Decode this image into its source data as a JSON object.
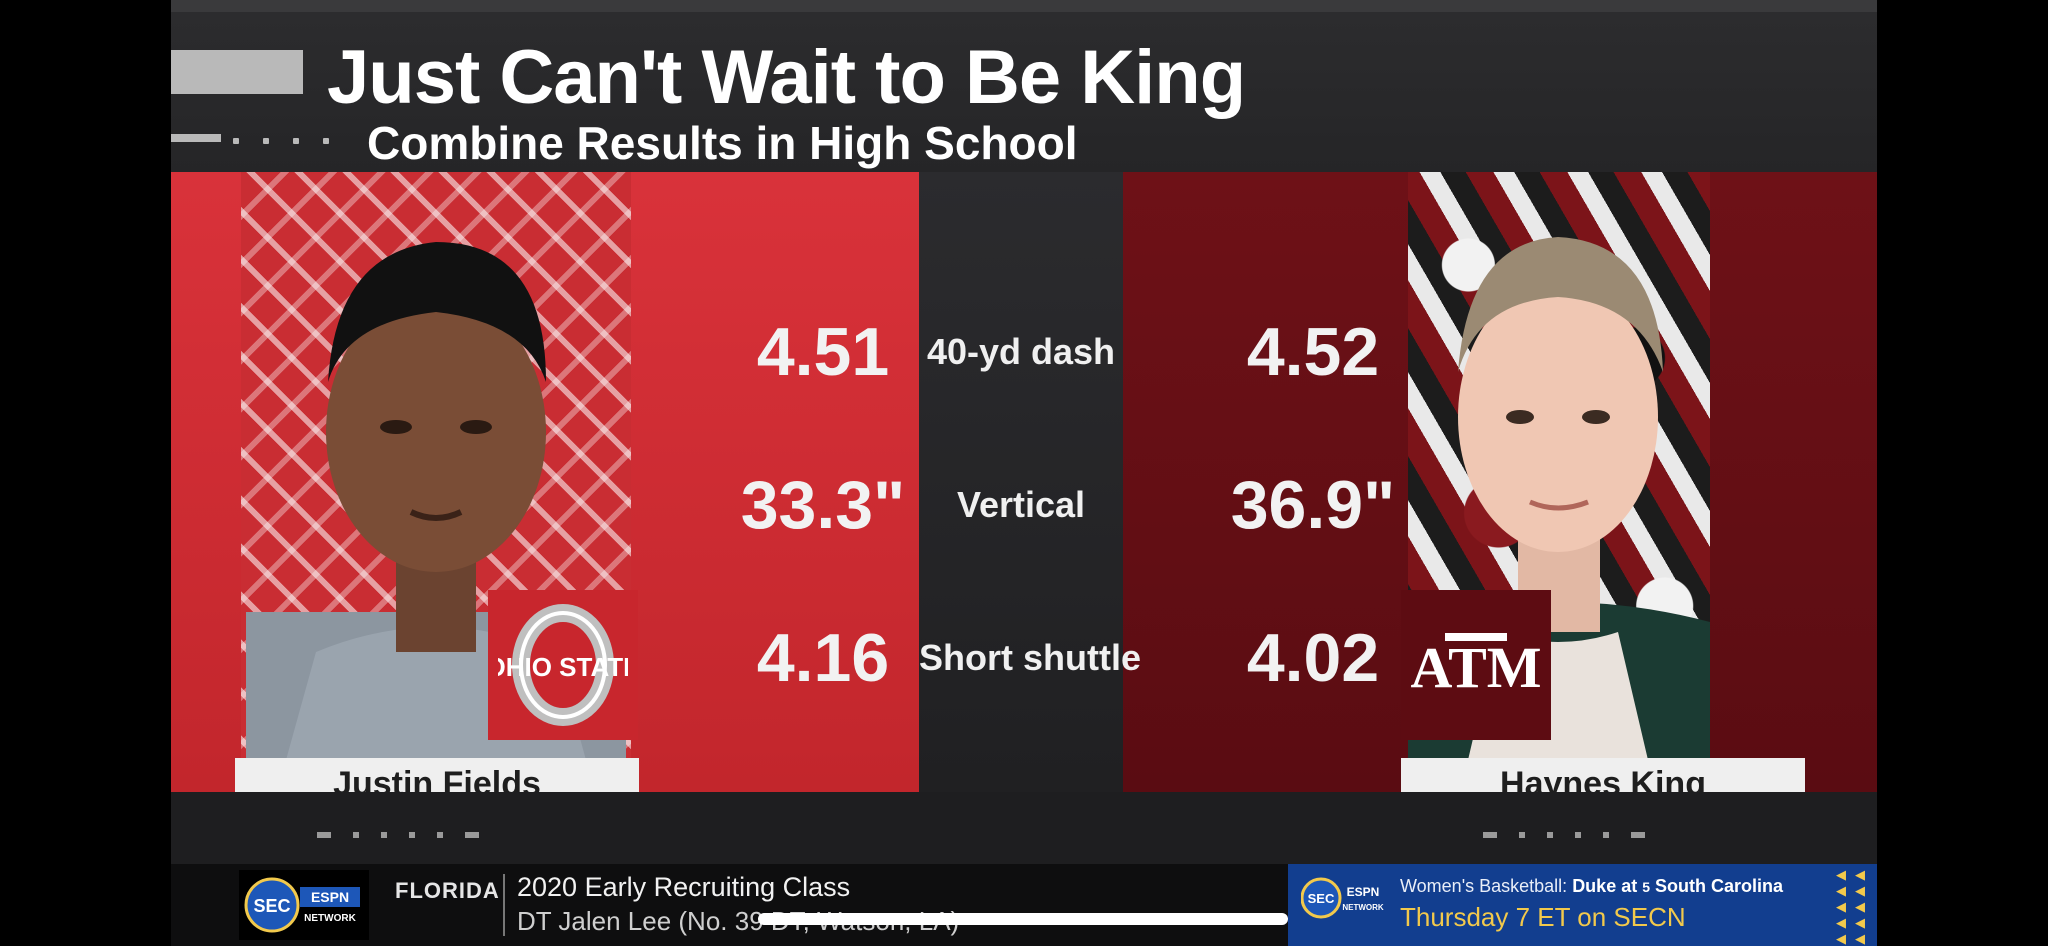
{
  "header": {
    "title": "Just Can't Wait to Be King",
    "subtitle": "Combine Results in High School"
  },
  "players": {
    "left": {
      "name": "Justin Fields",
      "school_logo": "OHIO STATE",
      "logo_icon": "ohio-state-logo-icon"
    },
    "right": {
      "name": "Haynes King",
      "school_logo": "ATM",
      "logo_icon": "texas-am-logo-icon"
    }
  },
  "stats": [
    {
      "label": "40-yd dash",
      "left": "4.51",
      "right": "4.52"
    },
    {
      "label": "Vertical",
      "left": "33.3\"",
      "right": "36.9\""
    },
    {
      "label": "Short shuttle",
      "left": "4.16",
      "right": "4.02"
    }
  ],
  "ticker": {
    "network_logo": "SEC ESPN NETWORK",
    "school": "FLORIDA",
    "headline": "2020 Early Recruiting Class",
    "subline": "DT Jalen Lee (No. 39 DT, Watson, LA)"
  },
  "promo": {
    "network_logo": "SEC ESPN NETWORK",
    "prefix": "Women's Basketball: ",
    "matchup": "Duke at ",
    "rank": "5",
    "opponent": " South Carolina",
    "time": "Thursday 7 ET on SECN"
  },
  "colors": {
    "ohio_state_red": "#c8262d",
    "texas_am_maroon": "#5d0c12",
    "promo_blue": "#123e8f",
    "promo_gold": "#f2c94c"
  }
}
